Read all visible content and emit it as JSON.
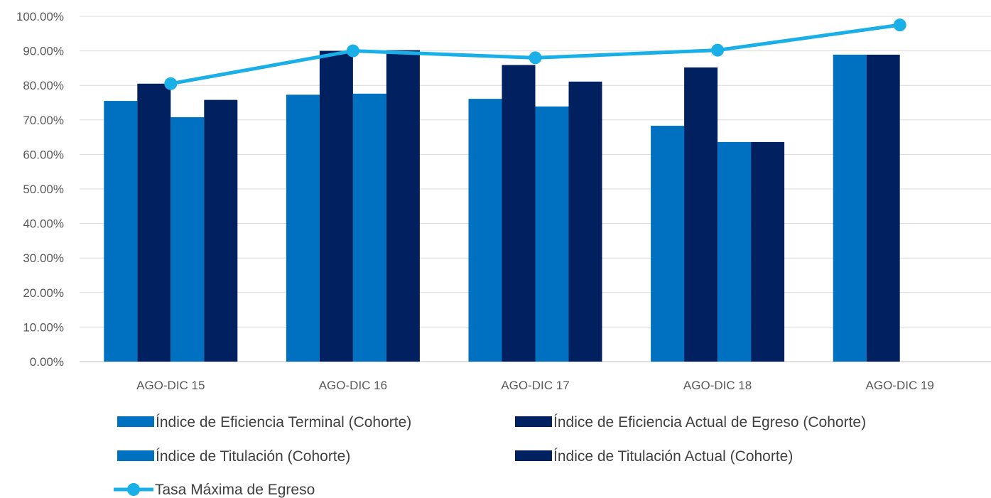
{
  "chart_data": {
    "type": "bar",
    "title": "",
    "xlabel": "",
    "ylabel": "",
    "ylim": [
      0,
      100
    ],
    "y_ticks": [
      "0.00%",
      "10.00%",
      "20.00%",
      "30.00%",
      "40.00%",
      "50.00%",
      "60.00%",
      "70.00%",
      "80.00%",
      "90.00%",
      "100.00%"
    ],
    "grid": true,
    "legend_position": "bottom",
    "categories": [
      "AGO-DIC 15",
      "AGO-DIC 16",
      "AGO-DIC 17",
      "AGO-DIC 18",
      "AGO-DIC 19"
    ],
    "series": [
      {
        "name": "Índice de Eficiencia Terminal (Cohorte)",
        "kind": "bar",
        "color": "#0070C0",
        "values": [
          75.5,
          77.3,
          76.1,
          68.3,
          88.9
        ]
      },
      {
        "name": "Índice de Eficiencia Actual de Egreso (Cohorte)",
        "kind": "bar",
        "color": "#002060",
        "values": [
          80.5,
          90.0,
          85.9,
          85.2,
          88.9
        ]
      },
      {
        "name": "Índice de Titulación (Cohorte)",
        "kind": "bar",
        "color": "#0070C0",
        "values": [
          70.8,
          77.6,
          73.9,
          63.6,
          null
        ]
      },
      {
        "name": "Índice de Titulación Actual (Cohorte)",
        "kind": "bar",
        "color": "#002060",
        "values": [
          75.8,
          90.2,
          81.1,
          63.6,
          null
        ]
      },
      {
        "name": "Tasa Máxima de Egreso",
        "kind": "line",
        "color": "#1AAFE6",
        "values": [
          80.5,
          90.0,
          88.0,
          90.2,
          97.5
        ]
      }
    ]
  }
}
